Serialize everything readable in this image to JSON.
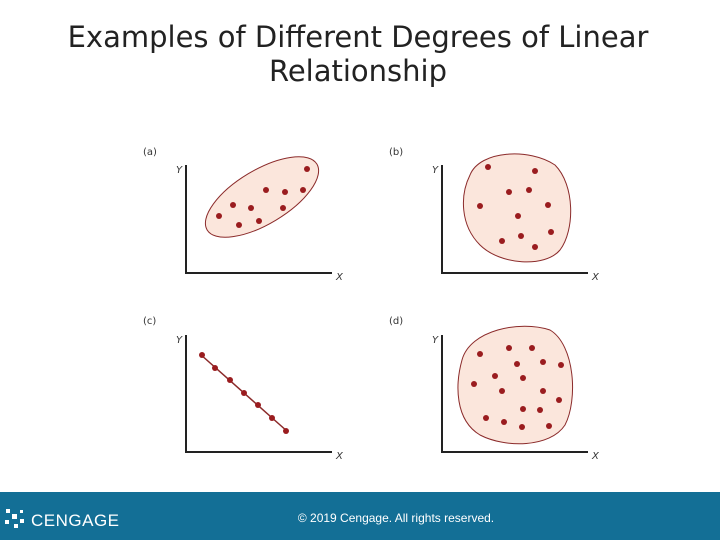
{
  "title": "Examples of Different Degrees of Linear Relationship",
  "panels": [
    {
      "label": "(a)",
      "y_label": "Y",
      "x_label": "X"
    },
    {
      "label": "(b)",
      "y_label": "Y",
      "x_label": "X"
    },
    {
      "label": "(c)",
      "y_label": "Y",
      "x_label": "X"
    },
    {
      "label": "(d)",
      "y_label": "Y",
      "x_label": "X"
    }
  ],
  "footer": {
    "logo": "CENGAGE",
    "copyright": "© 2019 Cengage. All rights reserved."
  }
}
